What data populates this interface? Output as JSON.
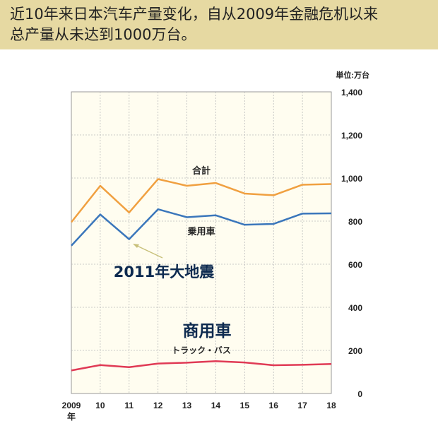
{
  "header": {
    "title_line1": "近10年来日本汽车产量变化，自从2009年金融危机以来",
    "title_line2": "总产量从未达到1000万台。"
  },
  "chart_data": {
    "type": "line",
    "unit_label": "単位:万台",
    "x": [
      "2009",
      "10",
      "11",
      "12",
      "13",
      "14",
      "15",
      "16",
      "17",
      "18"
    ],
    "x_first_suffix": "年",
    "ylim": [
      0,
      1400
    ],
    "yticks": [
      "0",
      "200",
      "400",
      "600",
      "800",
      "1,000",
      "1,200",
      "1,400"
    ],
    "ytick_values": [
      0,
      200,
      400,
      600,
      800,
      1000,
      1200,
      1400
    ],
    "grid": true,
    "series": [
      {
        "name": "合計",
        "color": "#f0a040",
        "values": [
          795,
          964,
          840,
          995,
          964,
          977,
          928,
          920,
          969,
          972
        ]
      },
      {
        "name": "乗用車",
        "color": "#3a76bb",
        "values": [
          686,
          831,
          716,
          855,
          818,
          827,
          783,
          787,
          835,
          836
        ]
      },
      {
        "name": "商用車",
        "sublabel": "トラック・バス",
        "color": "#e03a55",
        "values": [
          107,
          132,
          122,
          139,
          143,
          150,
          144,
          131,
          133,
          137
        ]
      }
    ],
    "annotation": {
      "text": "2011年大地震",
      "x": "11",
      "color": "#0d2a4f"
    }
  }
}
